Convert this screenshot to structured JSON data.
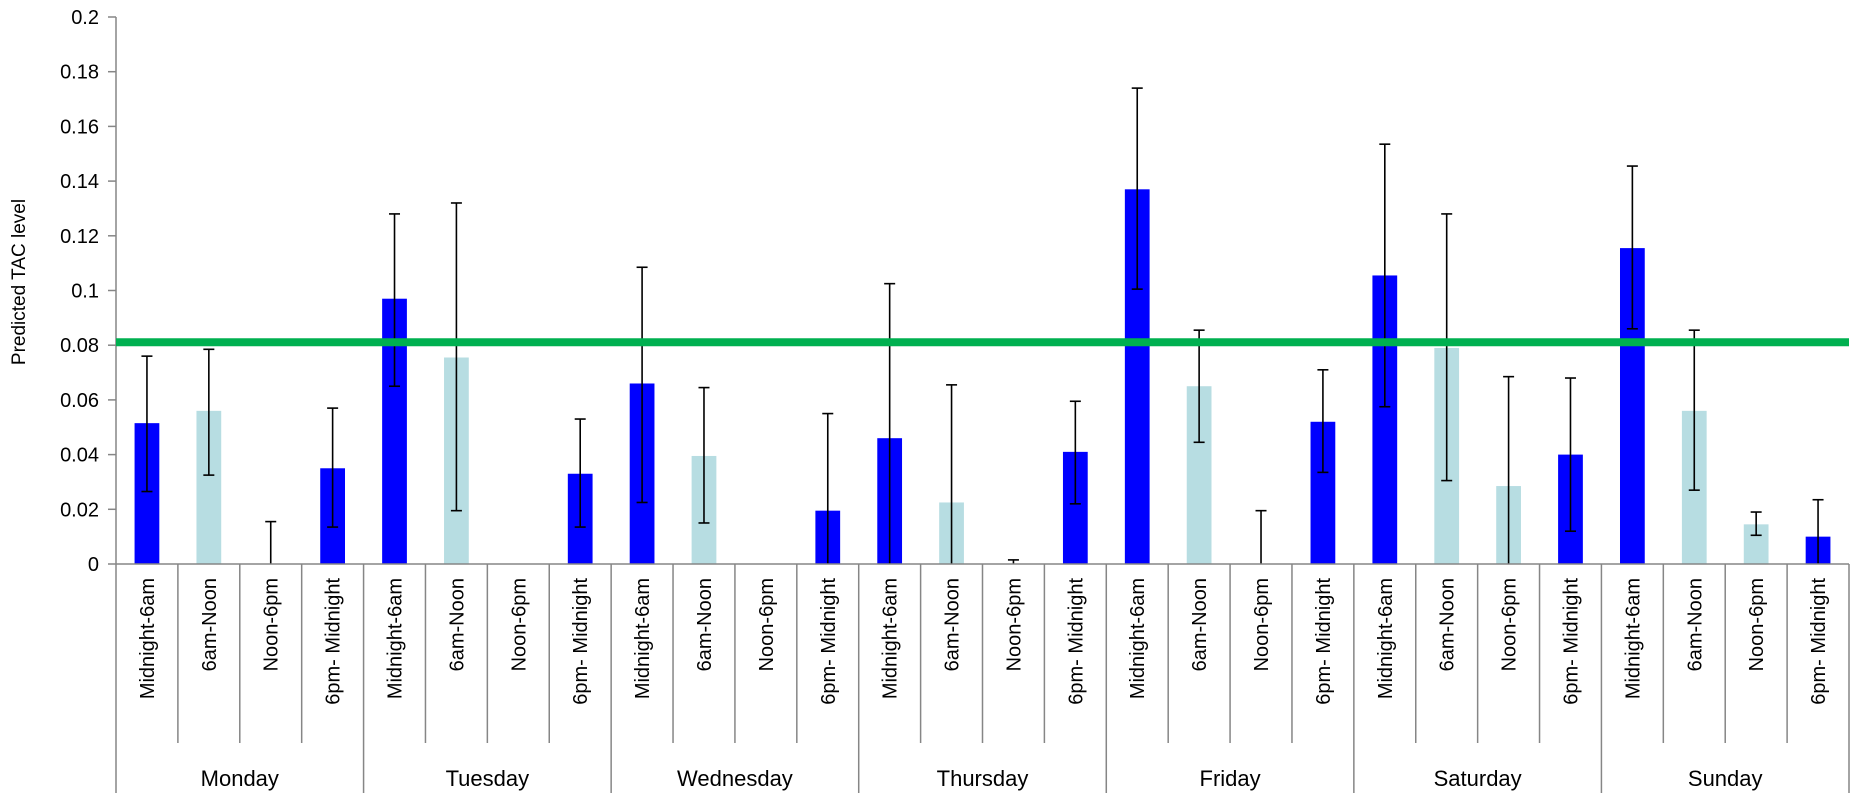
{
  "chart_data": {
    "type": "bar",
    "title": "",
    "xlabel": "",
    "ylabel": "Predicted TAC level",
    "ylim": [
      0,
      0.2
    ],
    "yticks": [
      "0",
      "0.02",
      "0.04",
      "0.06",
      "0.08",
      "0.1",
      "0.12",
      "0.14",
      "0.16",
      "0.18",
      "0.2"
    ],
    "grid": false,
    "legend": "none",
    "threshold_line": {
      "value": 0.08,
      "color": "#00b050"
    },
    "time_slots": [
      "Midnight-6am",
      "6am-Noon",
      "Noon-6pm",
      "6pm- Midnight"
    ],
    "slot_colors": [
      "#0000ff",
      "#b7dde2",
      "#b7dde2",
      "#0000ff"
    ],
    "days": [
      {
        "name": "Monday",
        "values": [
          0.0515,
          0.056,
          0.0,
          0.035
        ],
        "err_low": [
          0.0265,
          0.0325,
          0.0,
          0.0135
        ],
        "err_high": [
          0.076,
          0.0785,
          0.0155,
          0.057
        ]
      },
      {
        "name": "Tuesday",
        "values": [
          0.097,
          0.0755,
          0.0,
          0.033
        ],
        "err_low": [
          0.065,
          0.0195,
          0.0,
          0.0135
        ],
        "err_high": [
          0.128,
          0.132,
          0.0,
          0.053
        ]
      },
      {
        "name": "Wednesday",
        "values": [
          0.066,
          0.0395,
          0.0,
          0.0195
        ],
        "err_low": [
          0.0225,
          0.015,
          0.0,
          0.0
        ],
        "err_high": [
          0.1085,
          0.0645,
          0.0,
          0.055
        ]
      },
      {
        "name": "Thursday",
        "values": [
          0.046,
          0.0225,
          0.0,
          0.041
        ],
        "err_low": [
          0.0,
          0.0,
          0.0,
          0.022
        ],
        "err_high": [
          0.1025,
          0.0655,
          0.0015,
          0.0595
        ]
      },
      {
        "name": "Friday",
        "values": [
          0.137,
          0.065,
          0.0,
          0.052
        ],
        "err_low": [
          0.1005,
          0.0445,
          0.0,
          0.0335
        ],
        "err_high": [
          0.174,
          0.0855,
          0.0195,
          0.071
        ]
      },
      {
        "name": "Saturday",
        "values": [
          0.1055,
          0.079,
          0.0285,
          0.04
        ],
        "err_low": [
          0.0575,
          0.0305,
          0.0,
          0.012
        ],
        "err_high": [
          0.1535,
          0.128,
          0.0685,
          0.068
        ]
      },
      {
        "name": "Sunday",
        "values": [
          0.1155,
          0.056,
          0.0145,
          0.01
        ],
        "err_low": [
          0.086,
          0.027,
          0.0105,
          0.0
        ],
        "err_high": [
          0.1455,
          0.0855,
          0.019,
          0.0235
        ]
      }
    ]
  }
}
